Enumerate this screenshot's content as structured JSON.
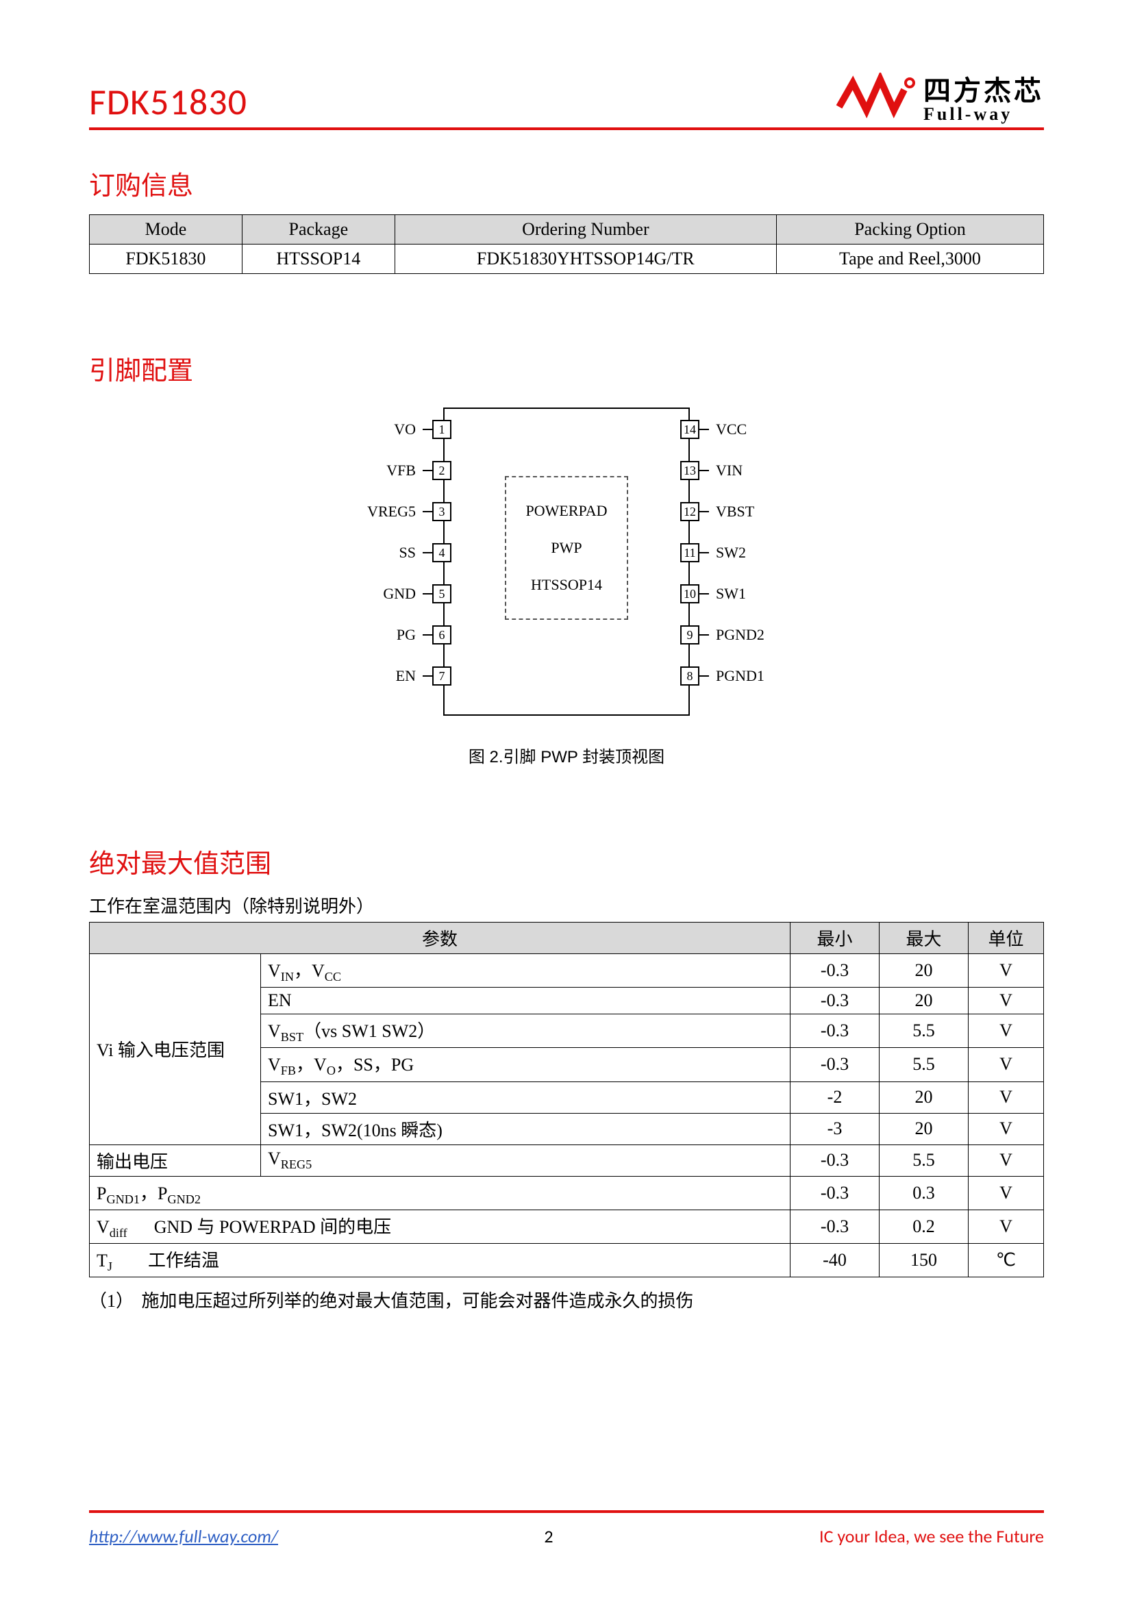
{
  "header": {
    "part_number": "FDK51830",
    "logo_cn": "四方杰芯",
    "logo_en": "Full-way"
  },
  "section_titles": {
    "ordering": "订购信息",
    "pinout": "引脚配置",
    "absmax": "绝对最大值范围"
  },
  "ordering_table": {
    "headers": [
      "Mode",
      "Package",
      "Ordering Number",
      "Packing Option"
    ],
    "row": [
      "FDK51830",
      "HTSSOP14",
      "FDK51830YHTSSOP14G/TR",
      "Tape and Reel,3000"
    ],
    "col_widths_pct": [
      16,
      16,
      40,
      28
    ]
  },
  "pinout": {
    "left_pins": [
      {
        "num": "1",
        "label": "VO"
      },
      {
        "num": "2",
        "label": "VFB"
      },
      {
        "num": "3",
        "label": "VREG5"
      },
      {
        "num": "4",
        "label": "SS"
      },
      {
        "num": "5",
        "label": "GND"
      },
      {
        "num": "6",
        "label": "PG"
      },
      {
        "num": "7",
        "label": "EN"
      }
    ],
    "right_pins": [
      {
        "num": "14",
        "label": "VCC"
      },
      {
        "num": "13",
        "label": "VIN"
      },
      {
        "num": "12",
        "label": "VBST"
      },
      {
        "num": "11",
        "label": "SW2"
      },
      {
        "num": "10",
        "label": "SW1"
      },
      {
        "num": "9",
        "label": "PGND2"
      },
      {
        "num": "8",
        "label": "PGND1"
      }
    ],
    "pad_lines": [
      "POWERPAD",
      "PWP",
      "HTSSOP14"
    ],
    "caption": "图 2.引脚 PWP 封装顶视图"
  },
  "absmax": {
    "condition": "工作在室温范围内（除特别说明外）",
    "headers": [
      "参数",
      "最小",
      "最大",
      "单位"
    ],
    "group1_label": "Vi 输入电压范围",
    "group1_rows": [
      {
        "param_html": "V<span class='sub'>IN</span>，V<span class='sub'>CC</span>",
        "min": "-0.3",
        "max": "20",
        "unit": "V"
      },
      {
        "param_html": "EN",
        "min": "-0.3",
        "max": "20",
        "unit": "V"
      },
      {
        "param_html": "V<span class='sub'>BST</span>（vs SW1 SW2）",
        "min": "-0.3",
        "max": "5.5",
        "unit": "V"
      },
      {
        "param_html": "V<span class='sub'>FB</span>，V<span class='sub'>O</span>，SS，PG",
        "min": "-0.3",
        "max": "5.5",
        "unit": "V"
      },
      {
        "param_html": "SW1，SW2",
        "min": "-2",
        "max": "20",
        "unit": "V"
      },
      {
        "param_html": "SW1，SW2(10ns 瞬态)",
        "min": "-3",
        "max": "20",
        "unit": "V"
      }
    ],
    "row_out": {
      "cat": "输出电压",
      "param_html": "V<span class='sub'>REG5</span>",
      "min": "-0.3",
      "max": "5.5",
      "unit": "V"
    },
    "row_pgnd": {
      "param_html": "P<span class='sub'>GND1</span>，P<span class='sub'>GND2</span>",
      "min": "-0.3",
      "max": "0.3",
      "unit": "V"
    },
    "row_vdiff": {
      "full_html": "V<span class='sub'>diff</span>&nbsp;&nbsp;&nbsp;&nbsp;&nbsp;&nbsp;GND 与 POWERPAD 间的电压",
      "min": "-0.3",
      "max": "0.2",
      "unit": "V"
    },
    "row_tj": {
      "full_html": "T<span class='sub'>J</span>&nbsp;&nbsp;&nbsp;&nbsp;&nbsp;&nbsp;&nbsp;&nbsp;工作结温",
      "min": "-40",
      "max": "150",
      "unit": "℃"
    },
    "footnote_num": "（1）",
    "footnote_text": "施加电压超过所列举的绝对最大值范围，可能会对器件造成永久的损伤"
  },
  "footer": {
    "link": "http://www.full-way.com/",
    "page": "2",
    "slogan": "IC your Idea, we see the Future"
  },
  "colors": {
    "brand_red": "#e01010",
    "header_gray": "#d9d9d9",
    "link_blue": "#2e5fc4"
  }
}
